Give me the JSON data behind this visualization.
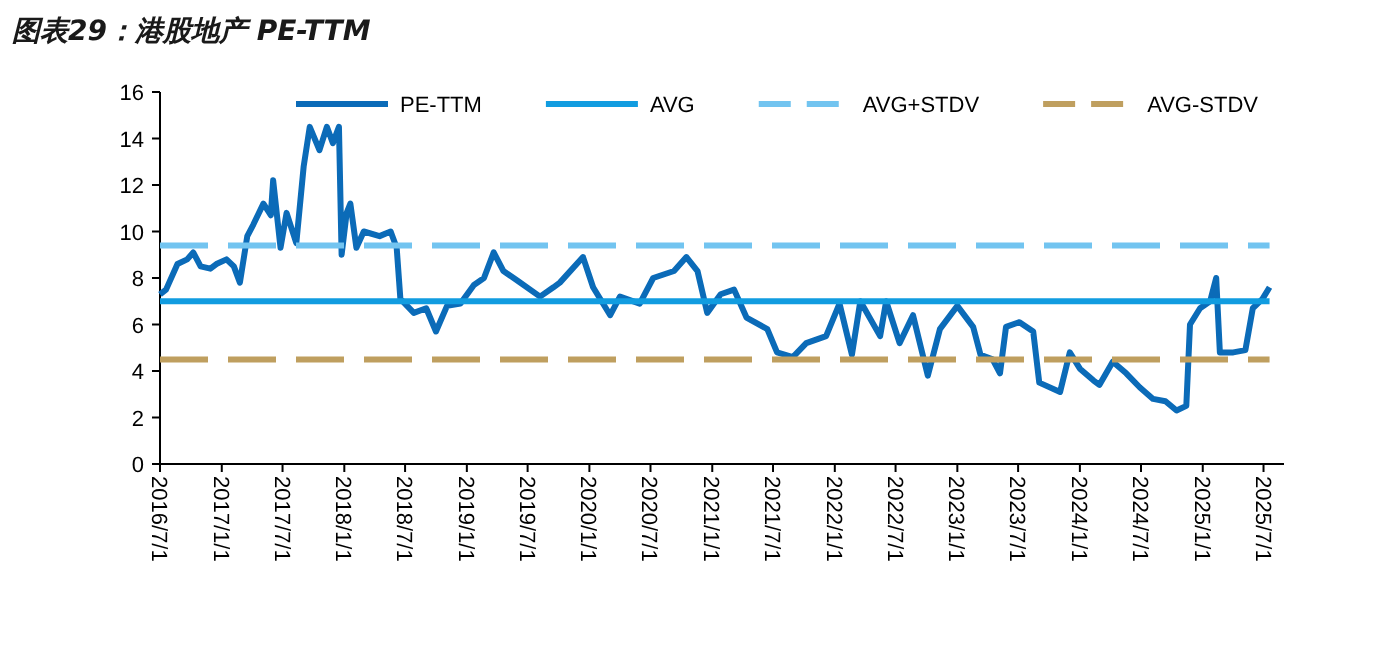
{
  "chart_data": {
    "type": "line",
    "title": "图表29：港股地产 PE-TTM",
    "xlim": [
      "2016-07-01",
      "2025-08-31"
    ],
    "ylim": [
      0,
      16
    ],
    "yticks": [
      0,
      2,
      4,
      6,
      8,
      10,
      12,
      14,
      16
    ],
    "xticks": [
      {
        "value": "2016-07-01",
        "label": "2016/7/1"
      },
      {
        "value": "2017-01-01",
        "label": "2017/1/1"
      },
      {
        "value": "2017-07-01",
        "label": "2017/7/1"
      },
      {
        "value": "2018-01-01",
        "label": "2018/1/1"
      },
      {
        "value": "2018-07-01",
        "label": "2018/7/1"
      },
      {
        "value": "2019-01-01",
        "label": "2019/1/1"
      },
      {
        "value": "2019-07-01",
        "label": "2019/7/1"
      },
      {
        "value": "2020-01-01",
        "label": "2020/1/1"
      },
      {
        "value": "2020-07-01",
        "label": "2020/7/1"
      },
      {
        "value": "2021-01-01",
        "label": "2021/1/1"
      },
      {
        "value": "2021-07-01",
        "label": "2021/7/1"
      },
      {
        "value": "2022-01-01",
        "label": "2022/1/1"
      },
      {
        "value": "2022-07-01",
        "label": "2022/7/1"
      },
      {
        "value": "2023-01-01",
        "label": "2023/1/1"
      },
      {
        "value": "2023-07-01",
        "label": "2023/7/1"
      },
      {
        "value": "2024-01-01",
        "label": "2024/1/1"
      },
      {
        "value": "2024-07-01",
        "label": "2024/7/1"
      },
      {
        "value": "2025-01-01",
        "label": "2025/1/1"
      },
      {
        "value": "2025-07-01",
        "label": "2025/7/1"
      }
    ],
    "grid": false,
    "legend": "top",
    "series": [
      {
        "name": "PE-TTM",
        "color": "#0b6bb8",
        "line_style": "solid",
        "x": [
          "2016-07-01",
          "2016-07-19",
          "2016-08-22",
          "2016-09-20",
          "2016-10-08",
          "2016-10-30",
          "2016-11-28",
          "2016-12-16",
          "2017-01-15",
          "2017-02-06",
          "2017-02-24",
          "2017-03-18",
          "2017-04-05",
          "2017-05-05",
          "2017-05-27",
          "2017-06-03",
          "2017-06-25",
          "2017-07-13",
          "2017-08-11",
          "2017-09-02",
          "2017-09-20",
          "2017-10-19",
          "2017-11-10",
          "2017-11-28",
          "2017-12-16",
          "2017-12-24",
          "2018-01-08",
          "2018-01-19",
          "2018-02-06",
          "2018-02-28",
          "2018-04-16",
          "2018-05-19",
          "2018-06-06",
          "2018-06-17",
          "2018-07-27",
          "2018-09-02",
          "2018-10-01",
          "2018-11-03",
          "2018-12-13",
          "2019-01-22",
          "2019-02-21",
          "2019-03-22",
          "2019-04-20",
          "2019-05-30",
          "2019-08-07",
          "2019-09-16",
          "2019-10-05",
          "2019-12-13",
          "2020-01-12",
          "2020-03-03",
          "2020-04-01",
          "2020-05-30",
          "2020-07-09",
          "2020-09-09",
          "2020-10-16",
          "2020-11-18",
          "2020-12-17",
          "2021-01-26",
          "2021-03-07",
          "2021-04-13",
          "2021-06-14",
          "2021-07-13",
          "2021-08-29",
          "2021-10-08",
          "2021-12-06",
          "2022-01-15",
          "2022-02-21",
          "2022-03-18",
          "2022-05-16",
          "2022-06-03",
          "2022-07-13",
          "2022-08-22",
          "2022-10-05",
          "2022-11-10",
          "2023-01-01",
          "2023-02-17",
          "2023-03-11",
          "2023-04-16",
          "2023-05-08",
          "2023-05-26",
          "2023-07-05",
          "2023-08-15",
          "2023-09-02",
          "2023-11-03",
          "2023-12-02",
          "2024-01-01",
          "2024-02-10",
          "2024-02-28",
          "2024-04-08",
          "2024-05-18",
          "2024-06-27",
          "2024-08-06",
          "2024-09-12",
          "2024-10-15",
          "2024-11-13",
          "2024-11-24",
          "2024-12-24",
          "2025-01-23",
          "2025-02-10",
          "2025-02-21",
          "2025-04-02",
          "2025-05-08",
          "2025-05-30",
          "2025-06-28",
          "2025-07-19"
        ],
        "values": [
          7.3,
          7.5,
          8.6,
          8.8,
          9.1,
          8.5,
          8.4,
          8.6,
          8.8,
          8.5,
          7.8,
          9.8,
          10.3,
          11.2,
          10.7,
          12.2,
          9.3,
          10.8,
          9.5,
          12.8,
          14.5,
          13.5,
          14.5,
          13.8,
          14.5,
          9.0,
          10.8,
          11.2,
          9.3,
          10.0,
          9.8,
          10.0,
          9.3,
          7.1,
          6.5,
          6.7,
          5.7,
          6.8,
          6.9,
          7.7,
          8.0,
          9.1,
          8.3,
          7.9,
          7.2,
          7.6,
          7.8,
          8.9,
          7.6,
          6.4,
          7.2,
          6.9,
          8.0,
          8.3,
          8.9,
          8.3,
          6.5,
          7.3,
          7.5,
          6.3,
          5.8,
          4.8,
          4.6,
          5.2,
          5.5,
          6.9,
          4.7,
          7.0,
          5.5,
          7.0,
          5.2,
          6.4,
          3.8,
          5.8,
          6.8,
          5.9,
          4.7,
          4.5,
          3.9,
          5.9,
          6.1,
          5.7,
          3.5,
          3.1,
          4.8,
          4.1,
          3.6,
          3.4,
          4.4,
          3.9,
          3.3,
          2.8,
          2.7,
          2.3,
          2.5,
          6.0,
          6.7,
          7.0,
          8.0,
          4.8,
          4.8,
          4.9,
          6.7,
          7.1,
          7.6
        ]
      },
      {
        "name": "AVG",
        "color": "#119ce0",
        "line_style": "solid",
        "x": [
          "2016-07-01",
          "2025-07-19"
        ],
        "values": [
          7.0,
          7.0
        ]
      },
      {
        "name": "AVG+STDV",
        "color": "#72c4f0",
        "line_style": "dashed",
        "x": [
          "2016-07-01",
          "2025-07-19"
        ],
        "values": [
          9.4,
          9.4
        ]
      },
      {
        "name": "AVG-STDV",
        "color": "#bf9f5f",
        "line_style": "dashed",
        "x": [
          "2016-07-01",
          "2025-07-19"
        ],
        "values": [
          4.5,
          4.5
        ]
      }
    ]
  }
}
